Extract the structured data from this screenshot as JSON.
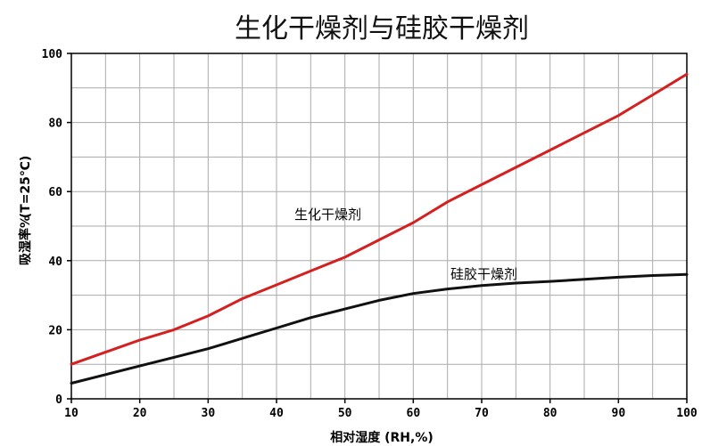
{
  "chart_data": {
    "type": "line",
    "title": "生化干燥剂与硅胶干燥剂",
    "xlabel": "相对湿度 (RH,%)",
    "ylabel": "吸湿率% (T=25℃)",
    "ylabel_main": "吸湿率%",
    "ylabel_sub": "(T=25℃)",
    "xlim": [
      10,
      100
    ],
    "ylim": [
      0,
      100
    ],
    "x_ticks": [
      "10",
      "20",
      "30",
      "40",
      "50",
      "60",
      "70",
      "80",
      "90",
      "100"
    ],
    "y_ticks": [
      "0",
      "20",
      "40",
      "60",
      "80",
      "100"
    ],
    "grid": true,
    "series": [
      {
        "name": "生化干燥剂",
        "color": "#d42020",
        "x": [
          10,
          15,
          20,
          25,
          30,
          35,
          40,
          45,
          50,
          55,
          60,
          65,
          70,
          75,
          80,
          85,
          90,
          95,
          100
        ],
        "y": [
          10,
          13.5,
          17,
          20,
          24,
          29,
          33,
          37,
          41,
          46,
          51,
          57,
          62,
          67,
          72,
          77,
          82,
          88,
          94
        ]
      },
      {
        "name": "硅胶干燥剂",
        "color": "#111111",
        "x": [
          10,
          15,
          20,
          25,
          30,
          35,
          40,
          45,
          50,
          55,
          60,
          65,
          70,
          75,
          80,
          85,
          90,
          95,
          100
        ],
        "y": [
          4.5,
          7,
          9.5,
          12,
          14.5,
          17.5,
          20.5,
          23.5,
          26,
          28.5,
          30.5,
          31.8,
          32.8,
          33.5,
          34,
          34.6,
          35.2,
          35.7,
          36
        ]
      }
    ]
  }
}
